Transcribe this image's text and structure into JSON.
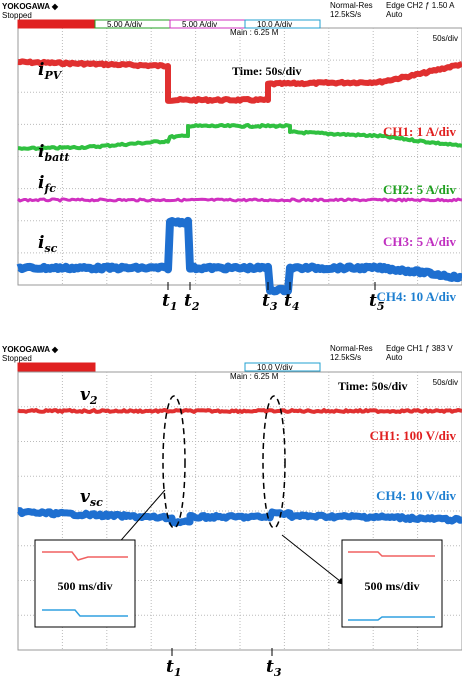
{
  "top_panel": {
    "brand": "YOKOGAWA ◆",
    "status": "Stopped",
    "channels": [
      "5.00 A/div",
      "5.00 A/div",
      "10.0 A/div"
    ],
    "mode": "Normal-Res",
    "rate": "12.5kS/s",
    "trigger": "Edge CH2 ƒ 1.50 A",
    "trigger_mode": "Auto",
    "memory": "Main : 6.25 M",
    "timebase": "50s/div",
    "annotation": "Time: 50s/div",
    "traces": [
      {
        "symbol": "i",
        "sub": "PV",
        "scale": "CH1: 1 A/div"
      },
      {
        "symbol": "i",
        "sub": "batt",
        "scale": "CH2: 5 A/div"
      },
      {
        "symbol": "i",
        "sub": "fc",
        "scale": "CH3: 5 A/div"
      },
      {
        "symbol": "i",
        "sub": "sc",
        "scale": "CH4: 10 A/div"
      }
    ],
    "time_marks": [
      {
        "symbol": "t",
        "sub": "1"
      },
      {
        "symbol": "t",
        "sub": "2"
      },
      {
        "symbol": "t",
        "sub": "3"
      },
      {
        "symbol": "t",
        "sub": "4"
      },
      {
        "symbol": "t",
        "sub": "5"
      }
    ]
  },
  "bottom_panel": {
    "brand": "YOKOGAWA ◆",
    "status": "Stopped",
    "channels": [
      "10.0 V/div"
    ],
    "mode": "Normal-Res",
    "rate": "12.5kS/s",
    "trigger": "Edge CH1 ƒ 383 V",
    "trigger_mode": "Auto",
    "memory": "Main : 6.25 M",
    "timebase": "50s/div",
    "annotation": "Time: 50s/div",
    "traces": [
      {
        "symbol": "v",
        "sub": "2",
        "scale": "CH1: 100 V/div"
      },
      {
        "symbol": "v",
        "sub": "sc",
        "scale": "CH4: 10 V/div"
      }
    ],
    "insets": [
      "500 ms/div",
      "500 ms/div"
    ],
    "time_marks": [
      {
        "symbol": "t",
        "sub": "1"
      },
      {
        "symbol": "t",
        "sub": "3"
      }
    ]
  }
}
